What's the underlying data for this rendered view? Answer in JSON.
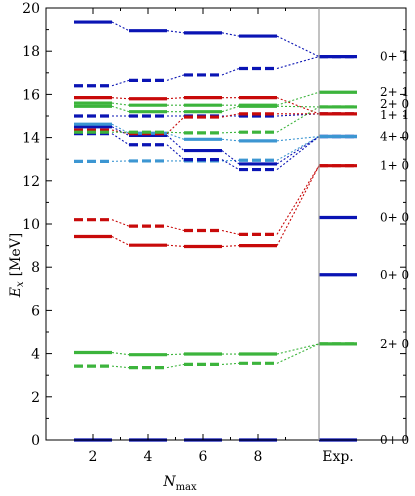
{
  "chart_data": {
    "type": "level_diagram",
    "xlabel_main": "N",
    "xlabel_sub": "max",
    "ylabel_main": "E",
    "ylabel_sub": "x",
    "ylabel_unit": "[MeV]",
    "ylim": [
      0,
      20
    ],
    "yticks": [
      0,
      2,
      4,
      6,
      8,
      10,
      12,
      14,
      16,
      18,
      20
    ],
    "columns": [
      "2",
      "4",
      "6",
      "8",
      "Exp."
    ],
    "colors": {
      "blue": "#0a14b4",
      "red": "#c80a0a",
      "green": "#3cb43c",
      "lightblue": "#3c96d2"
    },
    "series": [
      {
        "color": "blue",
        "style": "solid",
        "values": [
          0.0,
          0.0,
          0.0,
          0.0,
          0.0
        ]
      },
      {
        "color": "green",
        "style": "dashed",
        "values": [
          3.42,
          3.35,
          3.5,
          3.55,
          4.45
        ]
      },
      {
        "color": "green",
        "style": "solid",
        "values": [
          4.05,
          3.95,
          3.98,
          3.98,
          4.45
        ]
      },
      {
        "color": "red",
        "style": "solid",
        "values": [
          9.42,
          9.02,
          8.96,
          9.0,
          12.7
        ]
      },
      {
        "color": "red",
        "style": "dashed",
        "values": [
          10.2,
          9.9,
          9.7,
          9.52,
          12.7
        ]
      },
      {
        "color": "lightblue",
        "style": "dashed",
        "values": [
          12.9,
          12.92,
          12.92,
          12.95,
          14.05
        ]
      },
      {
        "color": "blue",
        "style": "dashed",
        "values": [
          14.18,
          13.67,
          12.98,
          12.52,
          14.05
        ]
      },
      {
        "color": "blue",
        "style": "solid",
        "values": [
          14.5,
          14.1,
          13.4,
          12.78,
          14.05
        ]
      },
      {
        "color": "lightblue",
        "style": "solid",
        "values": [
          14.62,
          14.2,
          13.92,
          13.85,
          14.05
        ]
      },
      {
        "color": "blue",
        "style": "dashed",
        "values": [
          15.0,
          15.0,
          15.0,
          15.0,
          15.1
        ]
      },
      {
        "color": "red",
        "style": "dashed",
        "values": [
          14.35,
          14.18,
          14.95,
          15.1,
          15.1
        ]
      },
      {
        "color": "green",
        "style": "dashed",
        "values": [
          14.25,
          14.25,
          14.22,
          14.25,
          15.42
        ]
      },
      {
        "color": "green",
        "style": "solid",
        "values": [
          15.45,
          15.2,
          15.2,
          15.45,
          15.42
        ]
      },
      {
        "color": "red",
        "style": "solid",
        "values": [
          15.85,
          15.8,
          15.85,
          15.85,
          15.1
        ]
      },
      {
        "color": "green",
        "style": "solid",
        "values": [
          15.6,
          15.5,
          15.5,
          15.5,
          16.1
        ]
      },
      {
        "color": "blue",
        "style": "dashed",
        "values": [
          16.4,
          16.65,
          16.9,
          17.2,
          17.75
        ]
      },
      {
        "color": "blue",
        "style": "solid",
        "values": [
          19.35,
          18.95,
          18.85,
          18.7,
          17.75
        ]
      }
    ],
    "exp_only_levels": [
      {
        "color": "blue",
        "value": 10.3
      },
      {
        "color": "blue",
        "value": 7.65
      }
    ],
    "exp_labels": [
      {
        "text": "0+ 1",
        "value": 17.75
      },
      {
        "text": "2+ 1",
        "value": 16.1
      },
      {
        "text": "2+ 0",
        "value": 15.55
      },
      {
        "text": "1+ 1",
        "value": 15.05
      },
      {
        "text": "4+ 0",
        "value": 14.05
      },
      {
        "text": "1+ 0",
        "value": 12.7
      },
      {
        "text": "0+ 0",
        "value": 10.3
      },
      {
        "text": "0+ 0",
        "value": 7.65
      },
      {
        "text": "2+ 0",
        "value": 4.45
      },
      {
        "text": "0+ 0",
        "value": 0.0
      }
    ]
  }
}
